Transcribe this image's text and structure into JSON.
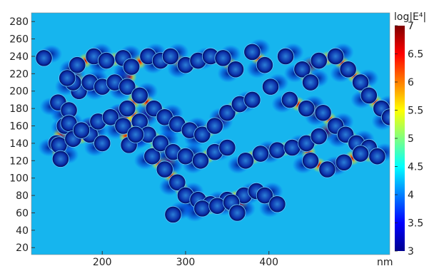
{
  "chart_data": {
    "type": "heatmap",
    "title": "",
    "xlabel": "",
    "ylabel": "",
    "x_unit": "nm",
    "xlim": [
      115,
      545
    ],
    "ylim": [
      12,
      290
    ],
    "x_ticks": [
      "200",
      "300",
      "400"
    ],
    "y_ticks": [
      "20",
      "40",
      "60",
      "80",
      "100",
      "120",
      "140",
      "160",
      "180",
      "200",
      "220",
      "240",
      "260",
      "280"
    ],
    "colorbar": {
      "title": "log|E⁴|",
      "range": [
        3,
        7
      ],
      "ticks": [
        "3",
        "3.5",
        "4",
        "4.5",
        "5",
        "5.5",
        "6",
        "6.5",
        "7"
      ],
      "colormap": "jet"
    },
    "background_level": 4.2,
    "particle_diameter_nm": 20,
    "particles_nm": [
      [
        130,
        238
      ],
      [
        147,
        187
      ],
      [
        155,
        160
      ],
      [
        145,
        140
      ],
      [
        148,
        138
      ],
      [
        160,
        178
      ],
      [
        172,
        200
      ],
      [
        165,
        210
      ],
      [
        158,
        215
      ],
      [
        170,
        230
      ],
      [
        190,
        240
      ],
      [
        205,
        235
      ],
      [
        225,
        238
      ],
      [
        235,
        228
      ],
      [
        255,
        240
      ],
      [
        270,
        235
      ],
      [
        282,
        240
      ],
      [
        300,
        230
      ],
      [
        315,
        235
      ],
      [
        330,
        240
      ],
      [
        345,
        238
      ],
      [
        360,
        225
      ],
      [
        380,
        245
      ],
      [
        395,
        230
      ],
      [
        420,
        240
      ],
      [
        440,
        225
      ],
      [
        450,
        210
      ],
      [
        460,
        235
      ],
      [
        480,
        240
      ],
      [
        495,
        225
      ],
      [
        510,
        210
      ],
      [
        520,
        195
      ],
      [
        535,
        180
      ],
      [
        545,
        170
      ],
      [
        185,
        210
      ],
      [
        200,
        205
      ],
      [
        215,
        210
      ],
      [
        230,
        205
      ],
      [
        245,
        195
      ],
      [
        262,
        180
      ],
      [
        275,
        170
      ],
      [
        290,
        162
      ],
      [
        305,
        155
      ],
      [
        320,
        150
      ],
      [
        335,
        160
      ],
      [
        350,
        175
      ],
      [
        365,
        185
      ],
      [
        380,
        190
      ],
      [
        402,
        205
      ],
      [
        425,
        190
      ],
      [
        445,
        180
      ],
      [
        465,
        175
      ],
      [
        480,
        160
      ],
      [
        492,
        150
      ],
      [
        505,
        140
      ],
      [
        520,
        135
      ],
      [
        530,
        125
      ],
      [
        450,
        120
      ],
      [
        470,
        110
      ],
      [
        490,
        118
      ],
      [
        510,
        128
      ],
      [
        160,
        163
      ],
      [
        185,
        150
      ],
      [
        200,
        140
      ],
      [
        232,
        138
      ],
      [
        260,
        125
      ],
      [
        275,
        110
      ],
      [
        290,
        95
      ],
      [
        300,
        80
      ],
      [
        315,
        75
      ],
      [
        330,
        70
      ],
      [
        350,
        75
      ],
      [
        370,
        80
      ],
      [
        385,
        85
      ],
      [
        395,
        80
      ],
      [
        410,
        70
      ],
      [
        285,
        58
      ],
      [
        320,
        65
      ],
      [
        338,
        68
      ],
      [
        355,
        72
      ],
      [
        362,
        60
      ],
      [
        372,
        120
      ],
      [
        390,
        128
      ],
      [
        410,
        132
      ],
      [
        428,
        135
      ],
      [
        445,
        140
      ],
      [
        460,
        148
      ],
      [
        230,
        180
      ],
      [
        245,
        165
      ],
      [
        255,
        150
      ],
      [
        270,
        140
      ],
      [
        285,
        130
      ],
      [
        300,
        125
      ],
      [
        318,
        120
      ],
      [
        335,
        130
      ],
      [
        350,
        135
      ],
      [
        150,
        122
      ],
      [
        165,
        145
      ],
      [
        175,
        155
      ],
      [
        195,
        165
      ],
      [
        210,
        170
      ],
      [
        225,
        160
      ],
      [
        240,
        150
      ]
    ]
  }
}
